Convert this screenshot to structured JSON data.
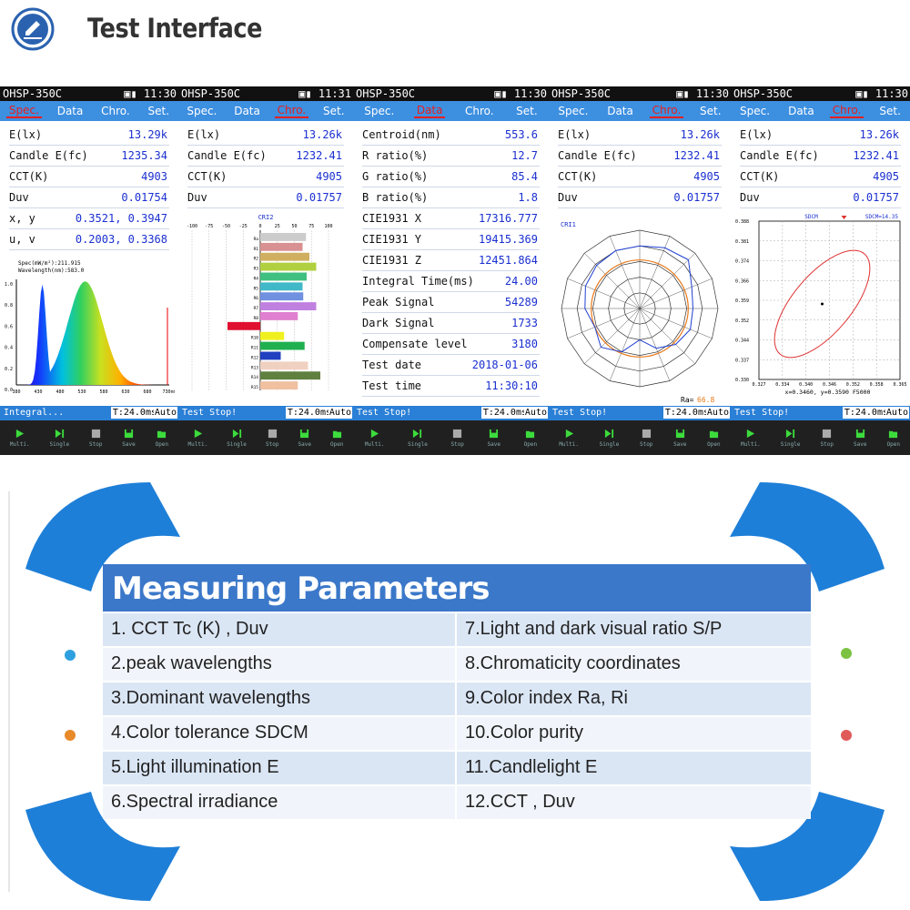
{
  "header": {
    "title": "Test Interface"
  },
  "screens": [
    {
      "model": "OHSP-350C",
      "clock": "11:30",
      "tabs": [
        "Spec.",
        "Data",
        "Chro.",
        "Set."
      ],
      "active": "Spec.",
      "rows": [
        [
          "E(lx)",
          "13.29k"
        ],
        [
          "Candle E(fc)",
          "1235.34"
        ],
        [
          "CCT(K)",
          "4903"
        ],
        [
          "Duv",
          "0.01754"
        ],
        [
          "x, y",
          "0.3521, 0.3947"
        ],
        [
          "u, v",
          "0.2003, 0.3368"
        ]
      ],
      "status": "Integral...",
      "time": "T:24.0ms",
      "auto": "Auto",
      "spectrum": {
        "info1": "Spec(mW/m²):211.915",
        "info2": "Wavelength(nm):583.0",
        "y_ticks": [
          "1.0",
          "0.8",
          "0.6",
          "0.4",
          "0.2",
          "0.0"
        ],
        "x_ticks": [
          "380",
          "430",
          "480",
          "530",
          "580",
          "630",
          "680",
          "730nm"
        ]
      }
    },
    {
      "model": "OHSP-350C",
      "clock": "11:31",
      "tabs": [
        "Spec.",
        "Data",
        "Chro.",
        "Set."
      ],
      "active": "Chro.",
      "rows": [
        [
          "E(lx)",
          "13.26k"
        ],
        [
          "Candle E(fc)",
          "1232.41"
        ],
        [
          "CCT(K)",
          "4905"
        ],
        [
          "Duv",
          "0.01757"
        ]
      ],
      "status": "Test Stop!",
      "time": "T:24.0ms",
      "auto": "Auto",
      "cri": {
        "title": "CRI2",
        "x_ticks": [
          "-100",
          "-75",
          "-50",
          "-25",
          "0",
          "25",
          "50",
          "75",
          "100"
        ],
        "labels": [
          "Ra",
          "R1",
          "R2",
          "R3",
          "R4",
          "R5",
          "R6",
          "R7",
          "R8",
          "R9",
          "R10",
          "R11",
          "R12",
          "R13",
          "R14",
          "R15"
        ]
      }
    },
    {
      "model": "OHSP-350C",
      "clock": "11:30",
      "tabs": [
        "Spec.",
        "Data",
        "Chro.",
        "Set."
      ],
      "active": "Data",
      "rows": [
        [
          "Centroid(nm)",
          "553.6"
        ],
        [
          "R ratio(%)",
          "12.7"
        ],
        [
          "G ratio(%)",
          "85.4"
        ],
        [
          "B ratio(%)",
          "1.8"
        ],
        [
          "CIE1931 X",
          "17316.777"
        ],
        [
          "CIE1931 Y",
          "19415.369"
        ],
        [
          "CIE1931 Z",
          "12451.864"
        ],
        [
          "Integral Time(ms)",
          "24.00"
        ],
        [
          "Peak Signal",
          "54289"
        ],
        [
          "Dark Signal",
          "1733"
        ],
        [
          "Compensate level",
          "3180"
        ],
        [
          "Test date",
          "2018-01-06"
        ],
        [
          "Test time",
          "11:30:10"
        ]
      ],
      "status": "Test Stop!",
      "time": "T:24.0ms",
      "auto": "Auto"
    },
    {
      "model": "OHSP-350C",
      "clock": "11:30",
      "tabs": [
        "Spec.",
        "Data",
        "Chro.",
        "Set."
      ],
      "active": "Chro.",
      "rows": [
        [
          "E(lx)",
          "13.26k"
        ],
        [
          "Candle E(fc)",
          "1232.41"
        ],
        [
          "CCT(K)",
          "4905"
        ],
        [
          "Duv",
          "0.01757"
        ]
      ],
      "status": "Test Stop!",
      "time": "T:24.0ms",
      "auto": "Auto",
      "radar": {
        "title": "CRI1",
        "ra_label": "Ra=",
        "ra_value": "66.8"
      }
    },
    {
      "model": "OHSP-350C",
      "clock": "11:30",
      "tabs": [
        "Spec.",
        "Data",
        "Chro.",
        "Set."
      ],
      "active": "Chro.",
      "rows": [
        [
          "E(lx)",
          "13.26k"
        ],
        [
          "Candle E(fc)",
          "1232.41"
        ],
        [
          "CCT(K)",
          "4905"
        ],
        [
          "Duv",
          "0.01757"
        ]
      ],
      "status": "Test Stop!",
      "time": "T:24.0ms",
      "auto": "Auto",
      "sdcm": {
        "title": "SDCM",
        "value": "SDCM=14.35",
        "y_ticks": [
          "0.388",
          "0.381",
          "0.374",
          "0.366",
          "0.359",
          "0.352",
          "0.344",
          "0.337",
          "0.330"
        ],
        "x_ticks": [
          "0.327",
          "0.334",
          "0.340",
          "0.346",
          "0.352",
          "0.358",
          "0.365"
        ],
        "footer": "x=0.3460, y=0.3590 F5000"
      }
    }
  ],
  "toolbar": [
    "Multi.",
    "Single",
    "Stop",
    "Save",
    "Open"
  ],
  "params": {
    "heading": "Measuring Parameters",
    "items": [
      [
        "1. CCT Tc (K) , Duv",
        "7.Light and dark visual ratio S/P"
      ],
      [
        "2.peak wavelengths",
        "8.Chromaticity coordinates"
      ],
      [
        "3.Dominant wavelengths",
        "9.Color index Ra, Ri"
      ],
      [
        "4.Color tolerance SDCM",
        "10.Color purity"
      ],
      [
        "5.Light illumination E",
        "11.Candlelight E"
      ],
      [
        "6.Spectral irradiance",
        "12.CCT , Duv"
      ]
    ]
  },
  "colors": {
    "tab_bar": "#3d8fe0",
    "active_tab": "#e62020",
    "value": "#1a2fd0",
    "param_head": "#3b78c9",
    "deco": "#1e7fd8"
  }
}
